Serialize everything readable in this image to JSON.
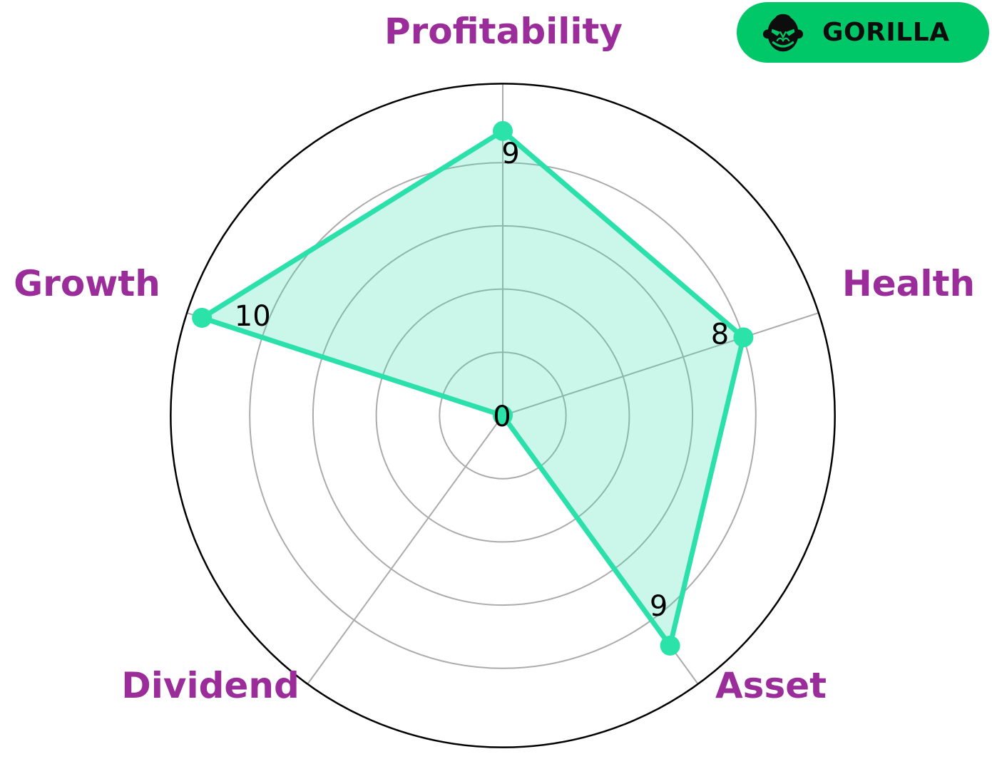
{
  "chart_data": {
    "type": "radar",
    "title": "",
    "categories": [
      "Profitability",
      "Health",
      "Asset",
      "Dividend",
      "Growth"
    ],
    "values": [
      9,
      8,
      9,
      0,
      10
    ],
    "value_labels": [
      "9",
      "8",
      "9",
      "0",
      "10"
    ],
    "r_min": 0,
    "r_max": 10.5,
    "r_gridlines": [
      2,
      4,
      6,
      8
    ],
    "grid_on": true,
    "legend": null,
    "colors": {
      "series_line": "#2BE0AA",
      "series_fill": "rgba(43,224,170,0.25)",
      "marker": "#2BE3A9",
      "grid": "#ABABAB",
      "outline": "#000000",
      "category_label": "#9A2D9A",
      "value_label": "#000000"
    }
  },
  "badge": {
    "label": "GORILLA",
    "icon": "gorilla-icon",
    "background": "#00C868",
    "text_color": "#0d0d0d"
  }
}
